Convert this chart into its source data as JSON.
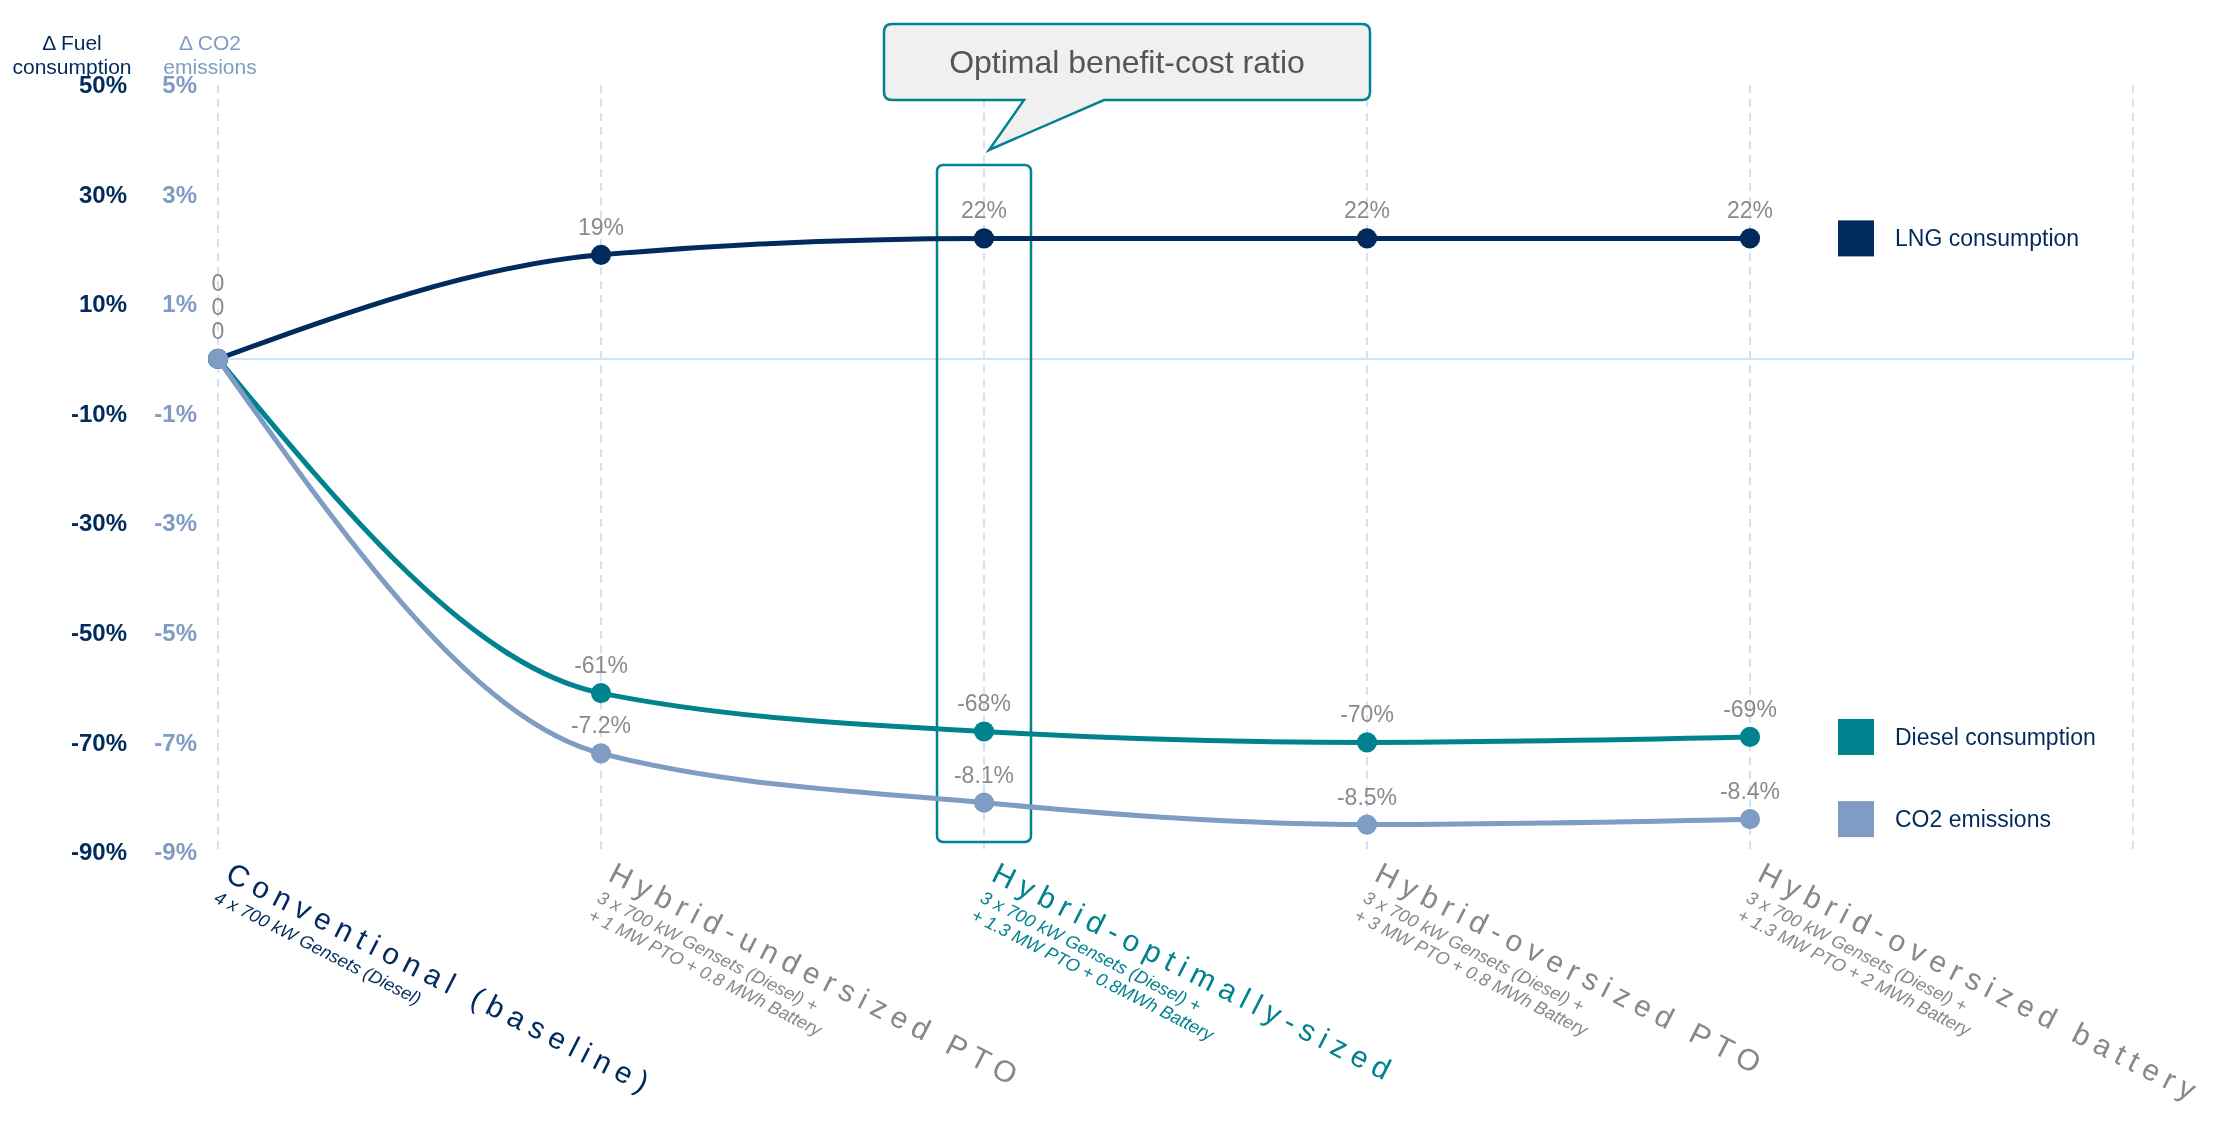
{
  "chart_data": {
    "type": "line",
    "ylabel": "Δ Fuel\nconsumption",
    "y2label": "Δ CO2\nemissions",
    "categories": [
      "Conventional (baseline)\n4 x 700 kW Gensets (Diesel)",
      "Hybrid-undersized PTO\n3 x 700 kW Gensets (Diesel) +\n+ 1 MW PTO + 0.8 MWh Battery",
      "Hybrid-optimally-sized\n3 x 700 kW Gensets (Diesel) +\n+ 1.3 MW PTO + 0.8MWh Battery",
      "Hybrid-oversized PTO\n3 x 700 kW Gensets (Diesel) +\n+ 3 MW PTO + 0.8 MWh Battery",
      "Hybrid-oversized battery\n3 x 700 kW Gensets (Diesel) +\n+ 1.3 MW PTO + 2 MWh Battery"
    ],
    "series": [
      {
        "name": "LNG consumption",
        "color": "#002b5c",
        "values": [
          0,
          19,
          22,
          22,
          22
        ],
        "value_labels": [
          "0",
          "19%",
          "22%",
          "22%",
          "22%"
        ]
      },
      {
        "name": "Diesel  consumption",
        "color": "#00838f",
        "values": [
          0,
          -61,
          -68,
          -70,
          -69
        ],
        "value_labels": [
          "0",
          "-61%",
          "-68%",
          "-70%",
          "-69%"
        ]
      },
      {
        "name": "CO2 emissions",
        "color": "#7f9cc4",
        "axis": "y2",
        "values": [
          0,
          -7.2,
          -8.1,
          -8.5,
          -8.4
        ],
        "value_labels": [
          "0",
          "-7.2%",
          "-8.1%",
          "-8.5%",
          "-8.4%"
        ]
      }
    ],
    "ylim": [
      -90,
      50
    ],
    "yticks": [
      {
        "value": -90,
        "label": "-90%"
      },
      {
        "value": -70,
        "label": "-70%"
      },
      {
        "value": -50,
        "label": "-50%"
      },
      {
        "value": -30,
        "label": "-30%"
      },
      {
        "value": -10,
        "label": "-10%"
      },
      {
        "value": 10,
        "label": "10%"
      },
      {
        "value": 30,
        "label": "30%"
      },
      {
        "value": 50,
        "label": "50%"
      }
    ],
    "y2lim": [
      -9,
      5
    ],
    "y2ticks": [
      {
        "value": -9,
        "label": "-9%"
      },
      {
        "value": -7,
        "label": "-7%"
      },
      {
        "value": -5,
        "label": "-5%"
      },
      {
        "value": -3,
        "label": "-3%"
      },
      {
        "value": -1,
        "label": "-1%"
      },
      {
        "value": 1,
        "label": "1%"
      },
      {
        "value": 3,
        "label": "3%"
      },
      {
        "value": 5,
        "label": "5%"
      }
    ],
    "ref_lines": [
      {
        "axis": "y",
        "value": 0,
        "color": "#cfe4f7"
      }
    ],
    "annotations": [
      "Optimal benefit-cost ratio"
    ],
    "grid": "x",
    "legend": "right",
    "marker": "circle",
    "line_style": "solid"
  }
}
